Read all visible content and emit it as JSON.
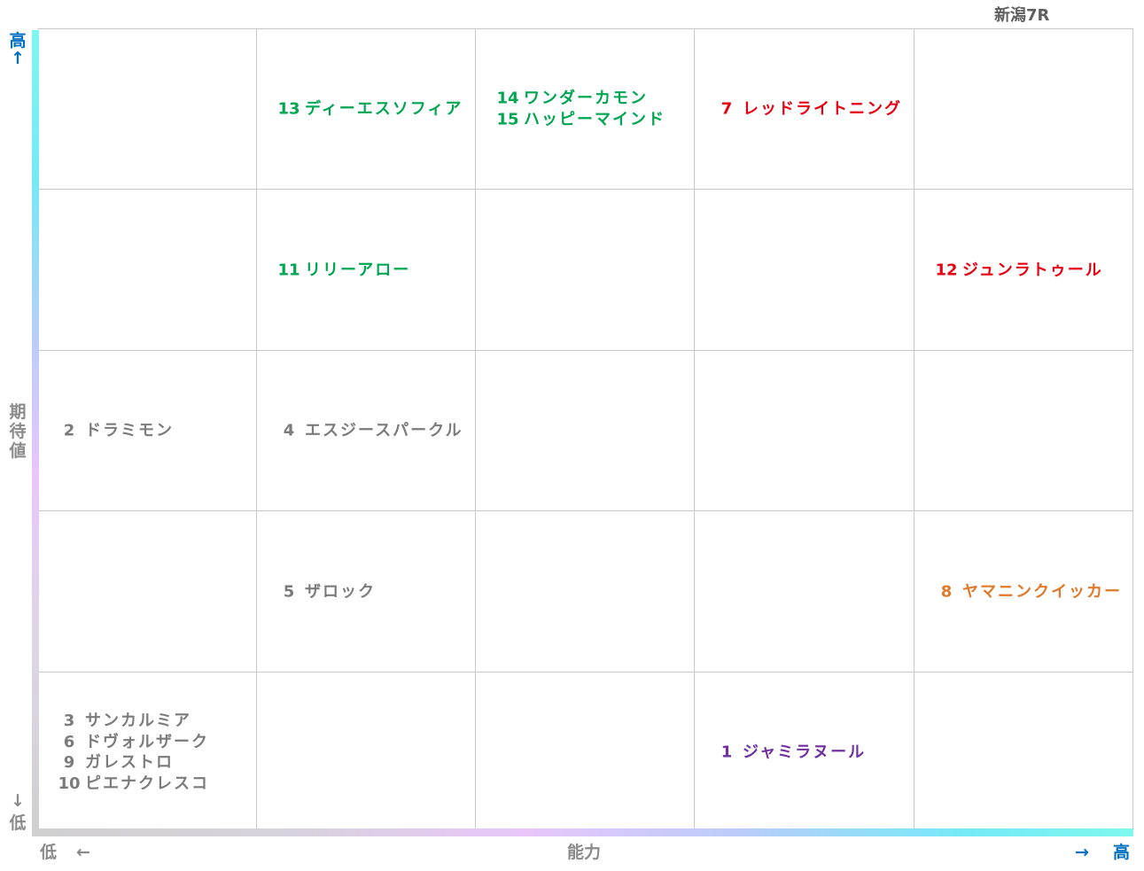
{
  "title": "新潟7R",
  "chart_data": {
    "type": "table",
    "x_axis": {
      "label": "能力",
      "low_label": "低",
      "low_arrow": "←",
      "high_label": "高",
      "high_arrow": "→"
    },
    "y_axis": {
      "label": "期待値",
      "high_label": "高",
      "high_arrow": "↑",
      "low_label": "低",
      "low_arrow": "↓"
    },
    "columns": 5,
    "rows": 5,
    "colors": {
      "green": "#00a651",
      "red": "#e60012",
      "orange": "#e07a2a",
      "gray": "#7b7b7b",
      "purple": "#7030a0",
      "axis_blue": "#0070c0",
      "axis_gray": "#8a8a8a"
    },
    "cells": [
      {
        "row": 0,
        "col": 1,
        "horses": [
          {
            "num": "13",
            "name": "ディーエスソフィア",
            "color": "#00a651"
          }
        ]
      },
      {
        "row": 0,
        "col": 2,
        "horses": [
          {
            "num": "14",
            "name": "ワンダーカモン",
            "color": "#00a651"
          },
          {
            "num": "15",
            "name": "ハッピーマインド",
            "color": "#00a651"
          }
        ]
      },
      {
        "row": 0,
        "col": 3,
        "horses": [
          {
            "num": "7",
            "name": "レッドライトニング",
            "color": "#e60012"
          }
        ]
      },
      {
        "row": 1,
        "col": 1,
        "horses": [
          {
            "num": "11",
            "name": "リリーアロー",
            "color": "#00a651"
          }
        ]
      },
      {
        "row": 1,
        "col": 4,
        "horses": [
          {
            "num": "12",
            "name": "ジュンラトゥール",
            "color": "#e60012"
          }
        ]
      },
      {
        "row": 2,
        "col": 0,
        "horses": [
          {
            "num": "2",
            "name": "ドラミモン",
            "color": "#7b7b7b"
          }
        ]
      },
      {
        "row": 2,
        "col": 1,
        "horses": [
          {
            "num": "4",
            "name": "エスジースパークル",
            "color": "#7b7b7b"
          }
        ]
      },
      {
        "row": 3,
        "col": 1,
        "horses": [
          {
            "num": "5",
            "name": "ザロック",
            "color": "#7b7b7b"
          }
        ]
      },
      {
        "row": 3,
        "col": 4,
        "horses": [
          {
            "num": "8",
            "name": "ヤマニンクイッカー",
            "color": "#e07a2a"
          }
        ]
      },
      {
        "row": 4,
        "col": 0,
        "horses": [
          {
            "num": "3",
            "name": "サンカルミア",
            "color": "#7b7b7b"
          },
          {
            "num": "6",
            "name": "ドヴォルザーク",
            "color": "#7b7b7b"
          },
          {
            "num": "9",
            "name": "ガレストロ",
            "color": "#7b7b7b"
          },
          {
            "num": "10",
            "name": "ピエナクレスコ",
            "color": "#7b7b7b"
          }
        ]
      },
      {
        "row": 4,
        "col": 3,
        "horses": [
          {
            "num": "1",
            "name": "ジャミラヌール",
            "color": "#7030a0"
          }
        ]
      }
    ]
  }
}
